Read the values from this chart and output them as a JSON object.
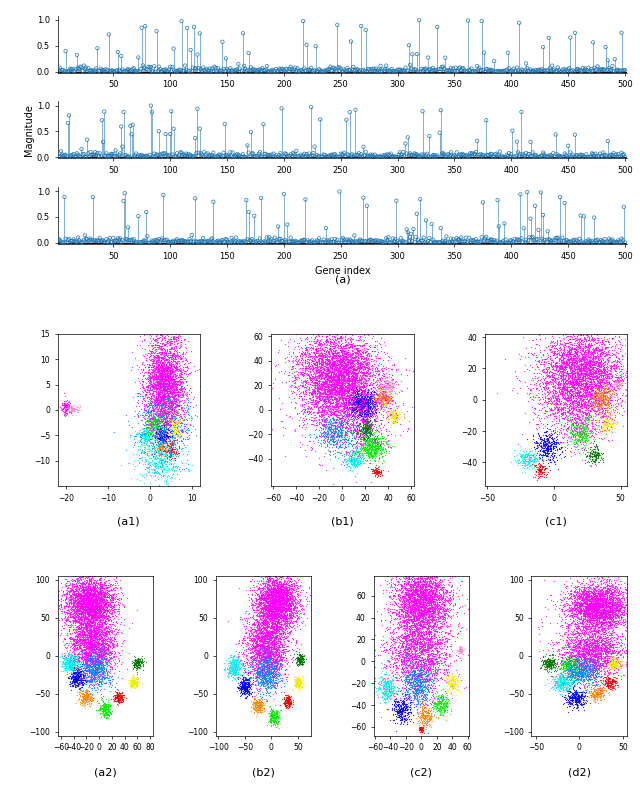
{
  "stem_color": "#1f77b4",
  "n_genes": 500,
  "xlabel_a": "Gene index",
  "ylabel_a": "Magnitude",
  "subplot_a_label": "(a)",
  "yticks_stem": [
    0,
    0.5,
    1
  ],
  "xticks_stem": [
    50,
    100,
    150,
    200,
    250,
    300,
    350,
    400,
    450,
    500
  ],
  "label_a1": "(a1)",
  "label_b1": "(b1)",
  "label_c1": "(c1)",
  "label_a2": "(a2)",
  "label_b2": "(b2)",
  "label_c2": "(c2)",
  "label_d2": "(d2)",
  "a1_xlim": [
    -22,
    12
  ],
  "a1_ylim": [
    -15,
    15
  ],
  "a1_xticks": [
    -20,
    -10,
    0,
    10
  ],
  "a1_yticks": [
    -10,
    -5,
    0,
    5,
    10,
    15
  ],
  "b1_xlim": [
    -62,
    62
  ],
  "b1_ylim": [
    -62,
    62
  ],
  "b1_xticks": [
    -60,
    -40,
    -20,
    0,
    20,
    40,
    60
  ],
  "b1_yticks": [
    -40,
    -20,
    0,
    20,
    40,
    60
  ],
  "c1_xlim": [
    -52,
    55
  ],
  "c1_ylim": [
    -55,
    42
  ],
  "c1_xticks": [
    -50,
    0,
    50
  ],
  "c1_yticks": [
    -40,
    -20,
    0,
    20,
    40
  ],
  "a2_xlim": [
    -65,
    85
  ],
  "a2_ylim": [
    -105,
    105
  ],
  "a2_xticks": [
    -60,
    -40,
    -20,
    0,
    20,
    40,
    60,
    80
  ],
  "a2_yticks": [
    -100,
    -50,
    0,
    50,
    100
  ],
  "b2_xlim": [
    -105,
    75
  ],
  "b2_ylim": [
    -105,
    105
  ],
  "b2_xticks": [
    -100,
    -50,
    0,
    50
  ],
  "b2_yticks": [
    -100,
    -50,
    0,
    50,
    100
  ],
  "c2_xlim": [
    -62,
    62
  ],
  "c2_ylim": [
    -68,
    78
  ],
  "c2_xticks": [
    -60,
    -40,
    -20,
    0,
    20,
    40,
    60
  ],
  "c2_yticks": [
    -60,
    -40,
    -20,
    0,
    20,
    40,
    60
  ],
  "d2_xlim": [
    -55,
    55
  ],
  "d2_ylim": [
    -105,
    105
  ],
  "d2_xticks": [
    -50,
    0,
    50
  ],
  "d2_yticks": [
    -100,
    -50,
    0,
    50,
    100
  ]
}
